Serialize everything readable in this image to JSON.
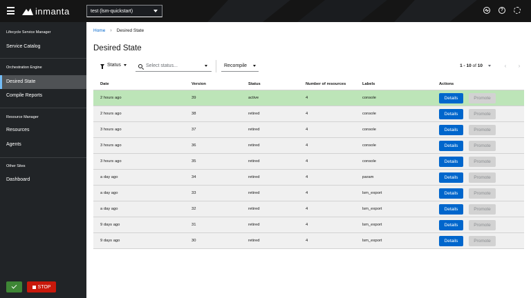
{
  "topbar": {
    "logo_text": "inmanta",
    "environment": "test (lsm-quickstart)",
    "icons": [
      "status-icon",
      "help-icon",
      "settings-icon"
    ]
  },
  "sidebar": {
    "groups": [
      {
        "title": "Lifecycle Service Manager",
        "items": [
          {
            "label": "Service Catalog",
            "active": false
          }
        ]
      },
      {
        "title": "Orchestration Engine",
        "items": [
          {
            "label": "Desired State",
            "active": true
          },
          {
            "label": "Compile Reports",
            "active": false
          }
        ]
      },
      {
        "title": "Resource Manager",
        "items": [
          {
            "label": "Resources",
            "active": false
          },
          {
            "label": "Agents",
            "active": false
          }
        ]
      },
      {
        "title": "Other Sites",
        "items": [
          {
            "label": "Dashboard",
            "active": false
          }
        ]
      }
    ],
    "stop_label": "STOP",
    "colors": {
      "ok": "#3e8635",
      "stop": "#c9190b"
    }
  },
  "breadcrumb": {
    "home": "Home",
    "current": "Desired State"
  },
  "page": {
    "title": "Desired State"
  },
  "toolbar": {
    "filter_label": "Status",
    "status_placeholder": "Select status...",
    "recompile_label": "Recompile",
    "pagination": {
      "range": "1 - 10",
      "of": "of",
      "total": "10"
    }
  },
  "table": {
    "headers": [
      "Date",
      "Version",
      "Status",
      "Number of resources",
      "Labels",
      "Actions"
    ],
    "details_label": "Details",
    "promote_label": "Promote",
    "rows": [
      {
        "date": "2 hours ago",
        "version": "39",
        "status": "active",
        "resources": "4",
        "labels": "console",
        "active": true
      },
      {
        "date": "2 hours ago",
        "version": "38",
        "status": "retired",
        "resources": "4",
        "labels": "console",
        "active": false
      },
      {
        "date": "3 hours ago",
        "version": "37",
        "status": "retired",
        "resources": "4",
        "labels": "console",
        "active": false
      },
      {
        "date": "3 hours ago",
        "version": "36",
        "status": "retired",
        "resources": "4",
        "labels": "console",
        "active": false
      },
      {
        "date": "3 hours ago",
        "version": "35",
        "status": "retired",
        "resources": "4",
        "labels": "console",
        "active": false
      },
      {
        "date": "a day ago",
        "version": "34",
        "status": "retired",
        "resources": "4",
        "labels": "param",
        "active": false
      },
      {
        "date": "a day ago",
        "version": "33",
        "status": "retired",
        "resources": "4",
        "labels": "lsm_export",
        "active": false
      },
      {
        "date": "a day ago",
        "version": "32",
        "status": "retired",
        "resources": "4",
        "labels": "lsm_export",
        "active": false
      },
      {
        "date": "9 days ago",
        "version": "31",
        "status": "retired",
        "resources": "4",
        "labels": "lsm_export",
        "active": false
      },
      {
        "date": "9 days ago",
        "version": "30",
        "status": "retired",
        "resources": "4",
        "labels": "lsm_export",
        "active": false
      }
    ]
  },
  "colors": {
    "accent": "#0066cc",
    "active_row": "#bde5b8",
    "sidebar_bg": "#212427",
    "topbar_bg": "#151515"
  }
}
